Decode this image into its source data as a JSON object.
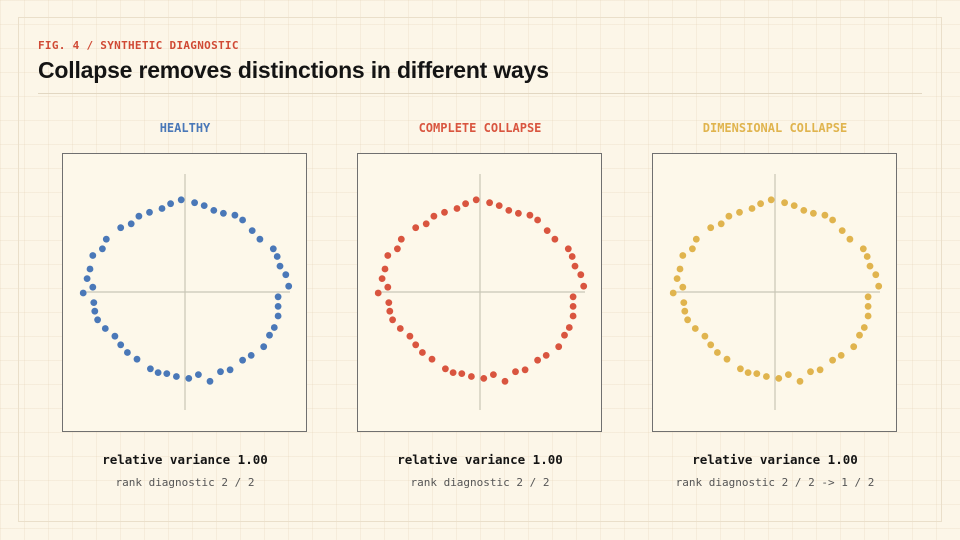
{
  "header": {
    "fig_label": "FIG. 4 / SYNTHETIC DIAGNOSTIC",
    "title": "Collapse removes distinctions in different ways"
  },
  "chart_data": [
    {
      "type": "scatter",
      "title": "HEALTHY",
      "color": "#4a78b8",
      "metric": "relative variance 1.00",
      "rank": "rank diagnostic 2 / 2",
      "xlim": [
        -1.3,
        1.3
      ],
      "ylim": [
        -1.15,
        1.15
      ],
      "points": [
        [
          1.08,
          0.06
        ],
        [
          1.05,
          0.18
        ],
        [
          0.99,
          0.27
        ],
        [
          0.96,
          0.37
        ],
        [
          0.92,
          0.45
        ],
        [
          0.78,
          0.55
        ],
        [
          0.7,
          0.64
        ],
        [
          0.6,
          0.75
        ],
        [
          0.52,
          0.8
        ],
        [
          0.4,
          0.82
        ],
        [
          0.3,
          0.85
        ],
        [
          0.2,
          0.9
        ],
        [
          0.1,
          0.93
        ],
        [
          -0.04,
          0.96
        ],
        [
          -0.15,
          0.92
        ],
        [
          -0.24,
          0.87
        ],
        [
          -0.37,
          0.83
        ],
        [
          -0.48,
          0.79
        ],
        [
          -0.56,
          0.71
        ],
        [
          -0.67,
          0.67
        ],
        [
          -0.82,
          0.55
        ],
        [
          -0.86,
          0.45
        ],
        [
          -0.96,
          0.38
        ],
        [
          -0.99,
          0.24
        ],
        [
          -1.02,
          0.14
        ],
        [
          -0.96,
          0.05
        ],
        [
          -1.06,
          -0.01
        ],
        [
          -0.95,
          -0.11
        ],
        [
          -0.94,
          -0.2
        ],
        [
          -0.91,
          -0.29
        ],
        [
          -0.83,
          -0.38
        ],
        [
          -0.73,
          -0.46
        ],
        [
          -0.67,
          -0.55
        ],
        [
          -0.6,
          -0.63
        ],
        [
          -0.5,
          -0.7
        ],
        [
          -0.36,
          -0.8
        ],
        [
          -0.28,
          -0.84
        ],
        [
          -0.19,
          -0.85
        ],
        [
          -0.09,
          -0.88
        ],
        [
          0.04,
          -0.9
        ],
        [
          0.14,
          -0.86
        ],
        [
          0.26,
          -0.93
        ],
        [
          0.37,
          -0.83
        ],
        [
          0.47,
          -0.81
        ],
        [
          0.6,
          -0.71
        ],
        [
          0.69,
          -0.66
        ],
        [
          0.82,
          -0.57
        ],
        [
          0.88,
          -0.45
        ],
        [
          0.93,
          -0.37
        ],
        [
          0.97,
          -0.25
        ],
        [
          0.97,
          -0.15
        ],
        [
          0.97,
          -0.05
        ]
      ]
    },
    {
      "type": "scatter",
      "title": "COMPLETE COLLAPSE",
      "color": "#d9553f",
      "metric": "relative variance 1.00",
      "rank": "rank diagnostic 2 / 2",
      "xlim": [
        -1.3,
        1.3
      ],
      "ylim": [
        -1.15,
        1.15
      ],
      "points": [
        [
          1.08,
          0.06
        ],
        [
          1.05,
          0.18
        ],
        [
          0.99,
          0.27
        ],
        [
          0.96,
          0.37
        ],
        [
          0.92,
          0.45
        ],
        [
          0.78,
          0.55
        ],
        [
          0.7,
          0.64
        ],
        [
          0.6,
          0.75
        ],
        [
          0.52,
          0.8
        ],
        [
          0.4,
          0.82
        ],
        [
          0.3,
          0.85
        ],
        [
          0.2,
          0.9
        ],
        [
          0.1,
          0.93
        ],
        [
          -0.04,
          0.96
        ],
        [
          -0.15,
          0.92
        ],
        [
          -0.24,
          0.87
        ],
        [
          -0.37,
          0.83
        ],
        [
          -0.48,
          0.79
        ],
        [
          -0.56,
          0.71
        ],
        [
          -0.67,
          0.67
        ],
        [
          -0.82,
          0.55
        ],
        [
          -0.86,
          0.45
        ],
        [
          -0.96,
          0.38
        ],
        [
          -0.99,
          0.24
        ],
        [
          -1.02,
          0.14
        ],
        [
          -0.96,
          0.05
        ],
        [
          -1.06,
          -0.01
        ],
        [
          -0.95,
          -0.11
        ],
        [
          -0.94,
          -0.2
        ],
        [
          -0.91,
          -0.29
        ],
        [
          -0.83,
          -0.38
        ],
        [
          -0.73,
          -0.46
        ],
        [
          -0.67,
          -0.55
        ],
        [
          -0.6,
          -0.63
        ],
        [
          -0.5,
          -0.7
        ],
        [
          -0.36,
          -0.8
        ],
        [
          -0.28,
          -0.84
        ],
        [
          -0.19,
          -0.85
        ],
        [
          -0.09,
          -0.88
        ],
        [
          0.04,
          -0.9
        ],
        [
          0.14,
          -0.86
        ],
        [
          0.26,
          -0.93
        ],
        [
          0.37,
          -0.83
        ],
        [
          0.47,
          -0.81
        ],
        [
          0.6,
          -0.71
        ],
        [
          0.69,
          -0.66
        ],
        [
          0.82,
          -0.57
        ],
        [
          0.88,
          -0.45
        ],
        [
          0.93,
          -0.37
        ],
        [
          0.97,
          -0.25
        ],
        [
          0.97,
          -0.15
        ],
        [
          0.97,
          -0.05
        ]
      ]
    },
    {
      "type": "scatter",
      "title": "DIMENSIONAL COLLAPSE",
      "color": "#e0b44e",
      "metric": "relative variance 1.00",
      "rank": "rank diagnostic 2 / 2 -> 1 / 2",
      "xlim": [
        -1.3,
        1.3
      ],
      "ylim": [
        -1.15,
        1.15
      ],
      "points": [
        [
          1.08,
          0.06
        ],
        [
          1.05,
          0.18
        ],
        [
          0.99,
          0.27
        ],
        [
          0.96,
          0.37
        ],
        [
          0.92,
          0.45
        ],
        [
          0.78,
          0.55
        ],
        [
          0.7,
          0.64
        ],
        [
          0.6,
          0.75
        ],
        [
          0.52,
          0.8
        ],
        [
          0.4,
          0.82
        ],
        [
          0.3,
          0.85
        ],
        [
          0.2,
          0.9
        ],
        [
          0.1,
          0.93
        ],
        [
          -0.04,
          0.96
        ],
        [
          -0.15,
          0.92
        ],
        [
          -0.24,
          0.87
        ],
        [
          -0.37,
          0.83
        ],
        [
          -0.48,
          0.79
        ],
        [
          -0.56,
          0.71
        ],
        [
          -0.67,
          0.67
        ],
        [
          -0.82,
          0.55
        ],
        [
          -0.86,
          0.45
        ],
        [
          -0.96,
          0.38
        ],
        [
          -0.99,
          0.24
        ],
        [
          -1.02,
          0.14
        ],
        [
          -0.96,
          0.05
        ],
        [
          -1.06,
          -0.01
        ],
        [
          -0.95,
          -0.11
        ],
        [
          -0.94,
          -0.2
        ],
        [
          -0.91,
          -0.29
        ],
        [
          -0.83,
          -0.38
        ],
        [
          -0.73,
          -0.46
        ],
        [
          -0.67,
          -0.55
        ],
        [
          -0.6,
          -0.63
        ],
        [
          -0.5,
          -0.7
        ],
        [
          -0.36,
          -0.8
        ],
        [
          -0.28,
          -0.84
        ],
        [
          -0.19,
          -0.85
        ],
        [
          -0.09,
          -0.88
        ],
        [
          0.04,
          -0.9
        ],
        [
          0.14,
          -0.86
        ],
        [
          0.26,
          -0.93
        ],
        [
          0.37,
          -0.83
        ],
        [
          0.47,
          -0.81
        ],
        [
          0.6,
          -0.71
        ],
        [
          0.69,
          -0.66
        ],
        [
          0.82,
          -0.57
        ],
        [
          0.88,
          -0.45
        ],
        [
          0.93,
          -0.37
        ],
        [
          0.97,
          -0.25
        ],
        [
          0.97,
          -0.15
        ],
        [
          0.97,
          -0.05
        ]
      ]
    }
  ]
}
